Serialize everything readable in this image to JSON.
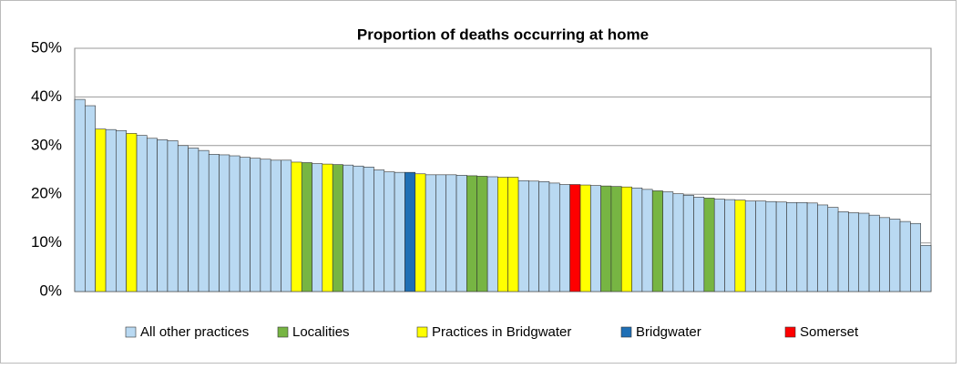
{
  "chart_data": {
    "type": "bar",
    "title": "Proportion of deaths occurring at home",
    "ylim": [
      0,
      50
    ],
    "yticks": [
      {
        "value": 0,
        "label": "0%"
      },
      {
        "value": 10,
        "label": "10%"
      },
      {
        "value": 20,
        "label": "20%"
      },
      {
        "value": 30,
        "label": "30%"
      },
      {
        "value": 40,
        "label": "40%"
      },
      {
        "value": 50,
        "label": "50%"
      }
    ],
    "grid": true,
    "legend": "bottom",
    "series": [
      {
        "name": "All other practices",
        "color": "#b9d9f2",
        "values": [
          39.5,
          38.2,
          null,
          33.3,
          33.1,
          null,
          32.1,
          31.5,
          31.2,
          31.0,
          30.0,
          29.5,
          29.0,
          28.2,
          28.1,
          27.9,
          27.6,
          27.4,
          27.2,
          27.0,
          27.0,
          null,
          null,
          26.3,
          null,
          null,
          26.0,
          25.8,
          25.6,
          25.0,
          24.6,
          24.5,
          null,
          null,
          24.0,
          24.0,
          24.0,
          23.9,
          null,
          null,
          23.6,
          null,
          null,
          22.8,
          22.7,
          22.6,
          22.3,
          22.0,
          null,
          null,
          21.8,
          null,
          null,
          null,
          21.3,
          21.0,
          null,
          20.5,
          20.1,
          19.8,
          19.4,
          null,
          19.0,
          18.9,
          null,
          18.6,
          18.6,
          18.5,
          18.4,
          18.3,
          18.3,
          18.2,
          17.8,
          17.3,
          16.4,
          16.2,
          16.1,
          15.7,
          15.2,
          14.9,
          14.4,
          14.0,
          9.5
        ]
      },
      {
        "name": "Localities",
        "color": "#77b543",
        "values": [
          null,
          null,
          null,
          null,
          null,
          null,
          null,
          null,
          null,
          null,
          null,
          null,
          null,
          null,
          null,
          null,
          null,
          null,
          null,
          null,
          null,
          null,
          26.5,
          null,
          null,
          26.1,
          null,
          null,
          null,
          null,
          null,
          null,
          null,
          null,
          null,
          null,
          null,
          null,
          23.8,
          23.7,
          null,
          null,
          null,
          null,
          null,
          null,
          null,
          null,
          null,
          null,
          null,
          21.7,
          21.6,
          null,
          null,
          null,
          20.7,
          null,
          null,
          null,
          null,
          19.2,
          null,
          null,
          null,
          null,
          null,
          null,
          null,
          null,
          null,
          null,
          null,
          null,
          null,
          null,
          null,
          null,
          null,
          null,
          null,
          null,
          null
        ]
      },
      {
        "name": "Practices in Bridgwater",
        "color": "#ffff00",
        "values": [
          null,
          null,
          33.4,
          null,
          null,
          32.5,
          null,
          null,
          null,
          null,
          null,
          null,
          null,
          null,
          null,
          null,
          null,
          null,
          null,
          null,
          null,
          26.6,
          null,
          null,
          26.2,
          null,
          null,
          null,
          null,
          null,
          null,
          null,
          null,
          24.2,
          null,
          null,
          null,
          null,
          null,
          null,
          null,
          23.5,
          23.5,
          null,
          null,
          null,
          null,
          null,
          null,
          21.9,
          null,
          null,
          null,
          21.5,
          null,
          null,
          null,
          null,
          null,
          null,
          null,
          null,
          null,
          null,
          18.8,
          null,
          null,
          null,
          null,
          null,
          null,
          null,
          null,
          null,
          null,
          null,
          null,
          null,
          null,
          null,
          null,
          null,
          null
        ]
      },
      {
        "name": "Bridgwater",
        "color": "#1f6fb5",
        "values": [
          null,
          null,
          null,
          null,
          null,
          null,
          null,
          null,
          null,
          null,
          null,
          null,
          null,
          null,
          null,
          null,
          null,
          null,
          null,
          null,
          null,
          null,
          null,
          null,
          null,
          null,
          null,
          null,
          null,
          null,
          null,
          null,
          24.5,
          null,
          null,
          null,
          null,
          null,
          null,
          null,
          null,
          null,
          null,
          null,
          null,
          null,
          null,
          null,
          null,
          null,
          null,
          null,
          null,
          null,
          null,
          null,
          null,
          null,
          null,
          null,
          null,
          null,
          null,
          null,
          null,
          null,
          null,
          null,
          null,
          null,
          null,
          null,
          null,
          null,
          null,
          null,
          null,
          null,
          null,
          null,
          null,
          null,
          null
        ]
      },
      {
        "name": "Somerset",
        "color": "#ff0000",
        "values": [
          null,
          null,
          null,
          null,
          null,
          null,
          null,
          null,
          null,
          null,
          null,
          null,
          null,
          null,
          null,
          null,
          null,
          null,
          null,
          null,
          null,
          null,
          null,
          null,
          null,
          null,
          null,
          null,
          null,
          null,
          null,
          null,
          null,
          null,
          null,
          null,
          null,
          null,
          null,
          null,
          null,
          null,
          null,
          null,
          null,
          null,
          null,
          null,
          22.0,
          null,
          null,
          null,
          null,
          null,
          null,
          null,
          null,
          null,
          null,
          null,
          null,
          null,
          null,
          null,
          null,
          null,
          null,
          null,
          null,
          null,
          null,
          null,
          null,
          null,
          null,
          null,
          null,
          null,
          null,
          null,
          null,
          null,
          null
        ]
      }
    ]
  }
}
